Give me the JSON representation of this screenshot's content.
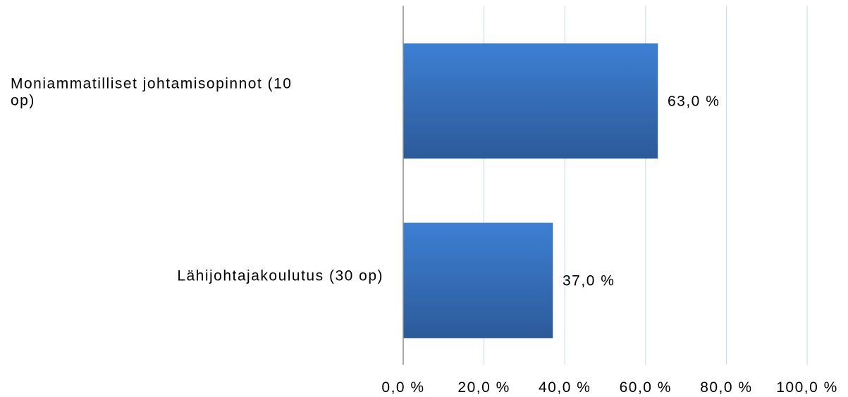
{
  "chart_data": {
    "type": "bar",
    "orientation": "horizontal",
    "categories": [
      "Moniammatilliset johtamisopinnot (10 op)",
      "Lähijohtajakoulutus (30 op)"
    ],
    "category_label_lines": [
      [
        "Moniammatilliset johtamisopinnot (10",
        "op)"
      ],
      [
        "Lähijohtajakoulutus (30 op)"
      ]
    ],
    "values": [
      63.0,
      37.0
    ],
    "data_labels": [
      "63,0 %",
      "37,0 %"
    ],
    "x_ticks": [
      0,
      20,
      40,
      60,
      80,
      100
    ],
    "x_tick_labels": [
      "0,0 %",
      "20,0 %",
      "40,0 %",
      "60,0 %",
      "80,0 %",
      "100,0 %"
    ],
    "xlim": [
      0,
      100
    ],
    "grid": true,
    "bar_color": "#3a75c4",
    "title": "",
    "xlabel": "",
    "ylabel": ""
  }
}
